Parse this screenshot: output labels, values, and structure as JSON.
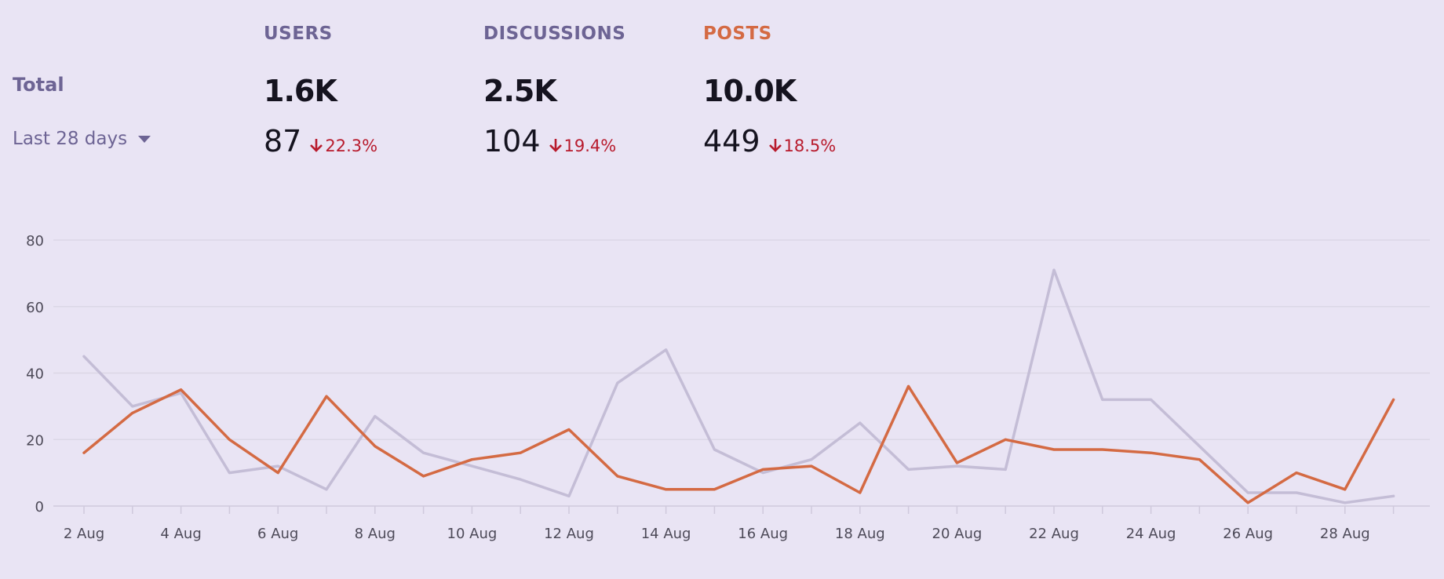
{
  "summary": {
    "total_label": "Total",
    "period_label": "Last 28 days",
    "stats": [
      {
        "label": "USERS",
        "color": "#6d6494",
        "total": "1.6K",
        "recent": "87",
        "change": "22.3%",
        "direction": "down"
      },
      {
        "label": "DISCUSSIONS",
        "color": "#6d6494",
        "total": "2.5K",
        "recent": "104",
        "change": "19.4%",
        "direction": "down"
      },
      {
        "label": "POSTS",
        "color": "#d46a43",
        "total": "10.0K",
        "recent": "449",
        "change": "18.5%",
        "direction": "down"
      }
    ],
    "change_color": "#b81b2d"
  },
  "chart_data": {
    "type": "line",
    "x": [
      "2 Aug",
      "3 Aug",
      "4 Aug",
      "5 Aug",
      "6 Aug",
      "7 Aug",
      "8 Aug",
      "9 Aug",
      "10 Aug",
      "11 Aug",
      "12 Aug",
      "13 Aug",
      "14 Aug",
      "15 Aug",
      "16 Aug",
      "17 Aug",
      "18 Aug",
      "19 Aug",
      "20 Aug",
      "21 Aug",
      "22 Aug",
      "23 Aug",
      "24 Aug",
      "25 Aug",
      "26 Aug",
      "27 Aug",
      "28 Aug",
      "29 Aug"
    ],
    "tick_labels": [
      "2 Aug",
      "4 Aug",
      "6 Aug",
      "8 Aug",
      "10 Aug",
      "12 Aug",
      "14 Aug",
      "16 Aug",
      "18 Aug",
      "20 Aug",
      "22 Aug",
      "24 Aug",
      "26 Aug",
      "28 Aug"
    ],
    "yticks": [
      0,
      20,
      40,
      60,
      80
    ],
    "ylim": [
      0,
      80
    ],
    "grid": true,
    "series": [
      {
        "color": "#c4bdd6",
        "values": [
          45,
          30,
          34,
          10,
          12,
          5,
          27,
          16,
          12,
          8,
          3,
          37,
          47,
          17,
          10,
          14,
          25,
          11,
          12,
          11,
          71,
          32,
          32,
          18,
          4,
          4,
          1,
          3
        ]
      },
      {
        "color": "#d46a43",
        "values": [
          16,
          28,
          35,
          20,
          10,
          33,
          18,
          9,
          14,
          16,
          23,
          9,
          5,
          5,
          11,
          12,
          4,
          36,
          13,
          20,
          17,
          17,
          16,
          14,
          1,
          10,
          5,
          32
        ]
      }
    ]
  }
}
